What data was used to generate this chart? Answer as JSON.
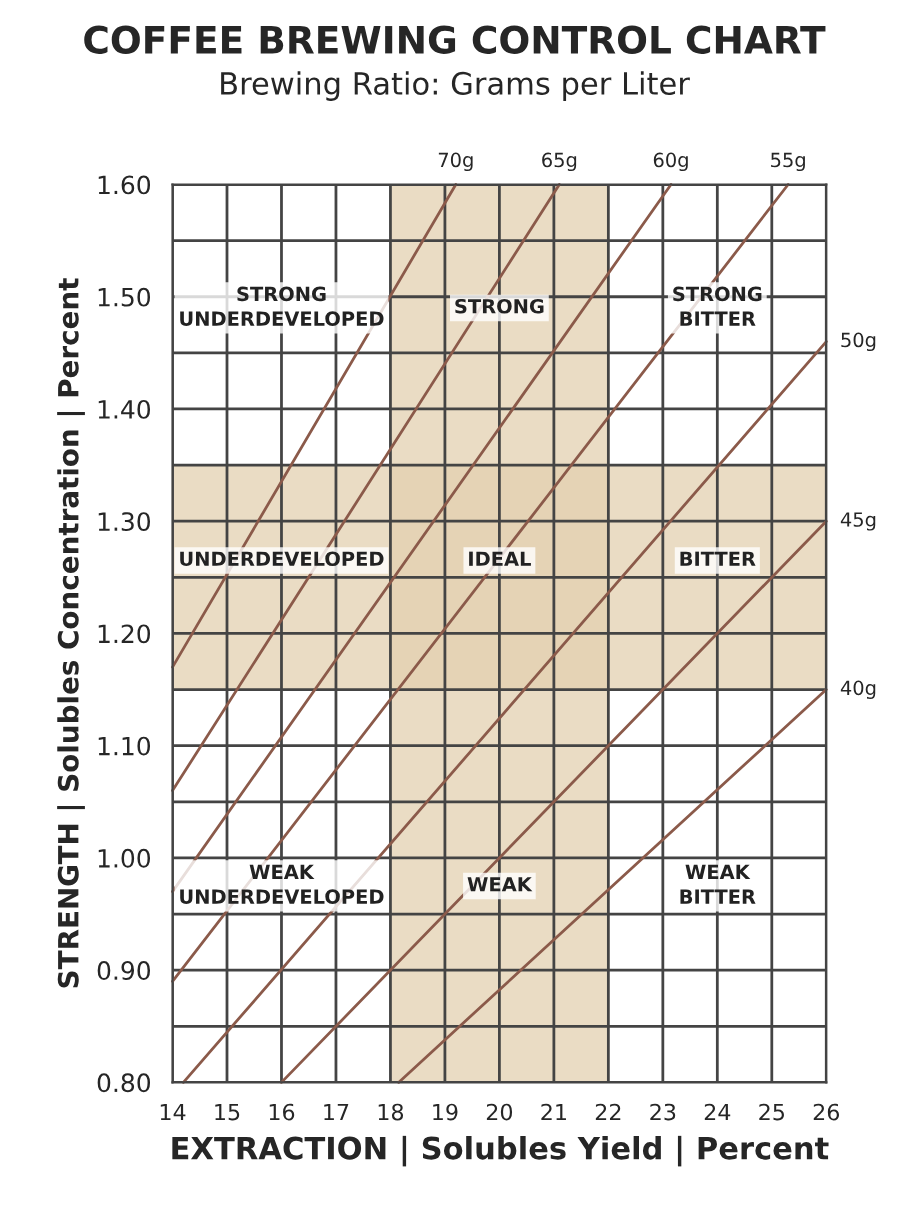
{
  "chart_data": {
    "type": "line",
    "title": "COFFEE BREWING CONTROL CHART",
    "subtitle": "Brewing Ratio: Grams per Liter",
    "xlabel": "EXTRACTION | Solubles Yield | Percent",
    "ylabel": "STRENGTH | Solubles Concentration | Percent",
    "xlim": [
      14,
      26
    ],
    "ylim": [
      0.8,
      1.6
    ],
    "xticks": [
      14,
      15,
      16,
      17,
      18,
      19,
      20,
      21,
      22,
      23,
      24,
      25,
      26
    ],
    "yticks": [
      {
        "value": 0.8,
        "label": "0.80"
      },
      {
        "value": 0.85,
        "label": null
      },
      {
        "value": 0.9,
        "label": "0.90"
      },
      {
        "value": 0.95,
        "label": null
      },
      {
        "value": 1.0,
        "label": "1.00"
      },
      {
        "value": 1.05,
        "label": null
      },
      {
        "value": 1.1,
        "label": "1.10"
      },
      {
        "value": 1.15,
        "label": null
      },
      {
        "value": 1.2,
        "label": "1.20"
      },
      {
        "value": 1.25,
        "label": null
      },
      {
        "value": 1.3,
        "label": "1.30"
      },
      {
        "value": 1.35,
        "label": null
      },
      {
        "value": 1.4,
        "label": "1.40"
      },
      {
        "value": 1.45,
        "label": null
      },
      {
        "value": 1.5,
        "label": "1.50"
      },
      {
        "value": 1.55,
        "label": null
      },
      {
        "value": 1.6,
        "label": "1.60"
      }
    ],
    "grid": true,
    "line_style": "solid",
    "marker": "none",
    "series": [
      {
        "name": "70g",
        "color": "#8b5a4a",
        "x": [
          14,
          19.2
        ],
        "values": [
          1.17,
          1.6
        ]
      },
      {
        "name": "65g",
        "color": "#8b5a4a",
        "x": [
          14,
          21.1
        ],
        "values": [
          1.06,
          1.6
        ]
      },
      {
        "name": "60g",
        "color": "#8b5a4a",
        "x": [
          14,
          23.15
        ],
        "values": [
          0.97,
          1.6
        ]
      },
      {
        "name": "55g",
        "color": "#8b5a4a",
        "x": [
          14,
          25.3
        ],
        "values": [
          0.89,
          1.6
        ]
      },
      {
        "name": "50g",
        "color": "#8b5a4a",
        "x": [
          14.2,
          26
        ],
        "values": [
          0.8,
          1.46
        ]
      },
      {
        "name": "45g",
        "color": "#8b5a4a",
        "x": [
          16.0,
          26
        ],
        "values": [
          0.8,
          1.3
        ]
      },
      {
        "name": "40g",
        "color": "#8b5a4a",
        "x": [
          18.15,
          26
        ],
        "values": [
          0.8,
          1.15
        ]
      }
    ],
    "bands": [
      {
        "axis": "x",
        "from": 18,
        "to": 22,
        "color": "#e3d0b0"
      },
      {
        "axis": "y",
        "from": 1.15,
        "to": 1.35,
        "color": "#e3d0b0"
      }
    ],
    "annotations": [
      "STRONG\nUNDERDEVELOPED",
      "STRONG",
      "STRONG\nBITTER",
      "UNDERDEVELOPED",
      "IDEAL",
      "BITTER",
      "WEAK\nUNDERDEVELOPED",
      "WEAK",
      "WEAK\nBITTER"
    ]
  }
}
